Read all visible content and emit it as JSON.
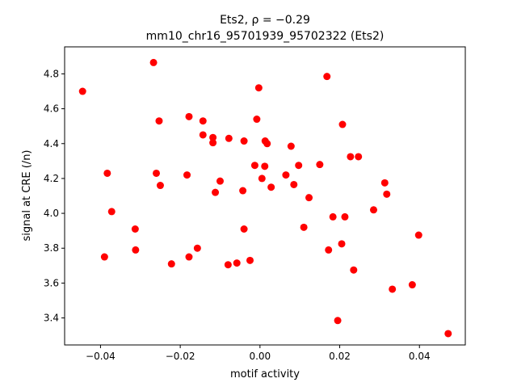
{
  "chart_data": {
    "type": "scatter",
    "title_line1": "Ets2, ρ = −0.29",
    "title_line2": "mm10_chr16_95701939_95702322 (Ets2)",
    "xlabel": "motif activity",
    "ylabel": "signal at CRE (/n)",
    "xlim": [
      -0.049,
      0.0515
    ],
    "ylim": [
      3.245,
      4.955
    ],
    "xticks": [
      -0.04,
      -0.02,
      0.0,
      0.02,
      0.04
    ],
    "xtick_labels": [
      "−0.04",
      "−0.02",
      "0.00",
      "0.02",
      "0.04"
    ],
    "yticks": [
      3.4,
      3.6,
      3.8,
      4.0,
      4.2,
      4.4,
      4.6,
      4.8
    ],
    "ytick_labels": [
      "3.4",
      "3.6",
      "3.8",
      "4.0",
      "4.2",
      "4.4",
      "4.6",
      "4.8"
    ],
    "marker_color": "#ff0000",
    "grid": false,
    "points": [
      {
        "x": -0.0445,
        "y": 4.7
      },
      {
        "x": -0.0267,
        "y": 4.865
      },
      {
        "x": -0.0253,
        "y": 4.53
      },
      {
        "x": -0.0178,
        "y": 4.555
      },
      {
        "x": -0.0143,
        "y": 4.53
      },
      {
        "x": -0.0143,
        "y": 4.45
      },
      {
        "x": -0.0118,
        "y": 4.435
      },
      {
        "x": -0.0118,
        "y": 4.405
      },
      {
        "x": -0.0078,
        "y": 4.43
      },
      {
        "x": -0.004,
        "y": 4.415
      },
      {
        "x": -0.0008,
        "y": 4.54
      },
      {
        "x": -0.0003,
        "y": 4.72
      },
      {
        "x": 0.0013,
        "y": 4.415
      },
      {
        "x": 0.0018,
        "y": 4.4
      },
      {
        "x": 0.0168,
        "y": 4.785
      },
      {
        "x": 0.0207,
        "y": 4.51
      },
      {
        "x": 0.0078,
        "y": 4.385
      },
      {
        "x": 0.0227,
        "y": 4.325
      },
      {
        "x": 0.0247,
        "y": 4.325
      },
      {
        "x": -0.0383,
        "y": 4.23
      },
      {
        "x": -0.026,
        "y": 4.23
      },
      {
        "x": -0.025,
        "y": 4.16
      },
      {
        "x": -0.0183,
        "y": 4.22
      },
      {
        "x": -0.01,
        "y": 4.185
      },
      {
        "x": -0.0112,
        "y": 4.12
      },
      {
        "x": -0.0043,
        "y": 4.13
      },
      {
        "x": -0.0013,
        "y": 4.275
      },
      {
        "x": 0.0012,
        "y": 4.27
      },
      {
        "x": 0.0005,
        "y": 4.2
      },
      {
        "x": 0.0028,
        "y": 4.15
      },
      {
        "x": 0.0065,
        "y": 4.22
      },
      {
        "x": 0.0085,
        "y": 4.165
      },
      {
        "x": 0.0097,
        "y": 4.275
      },
      {
        "x": 0.015,
        "y": 4.28
      },
      {
        "x": 0.0123,
        "y": 4.09
      },
      {
        "x": 0.0313,
        "y": 4.175
      },
      {
        "x": 0.0318,
        "y": 4.11
      },
      {
        "x": 0.0285,
        "y": 4.02
      },
      {
        "x": -0.0372,
        "y": 4.01
      },
      {
        "x": -0.0313,
        "y": 3.91
      },
      {
        "x": -0.004,
        "y": 3.91
      },
      {
        "x": 0.011,
        "y": 3.92
      },
      {
        "x": 0.0183,
        "y": 3.98
      },
      {
        "x": 0.0213,
        "y": 3.98
      },
      {
        "x": -0.0312,
        "y": 3.79
      },
      {
        "x": -0.0157,
        "y": 3.8
      },
      {
        "x": -0.039,
        "y": 3.75
      },
      {
        "x": -0.0178,
        "y": 3.75
      },
      {
        "x": -0.0222,
        "y": 3.71
      },
      {
        "x": -0.008,
        "y": 3.705
      },
      {
        "x": -0.0058,
        "y": 3.715
      },
      {
        "x": -0.0025,
        "y": 3.73
      },
      {
        "x": 0.0172,
        "y": 3.79
      },
      {
        "x": 0.0205,
        "y": 3.825
      },
      {
        "x": 0.0398,
        "y": 3.875
      },
      {
        "x": 0.0235,
        "y": 3.675
      },
      {
        "x": 0.0382,
        "y": 3.59
      },
      {
        "x": 0.0332,
        "y": 3.565
      },
      {
        "x": 0.0195,
        "y": 3.385
      },
      {
        "x": 0.0472,
        "y": 3.31
      }
    ]
  }
}
